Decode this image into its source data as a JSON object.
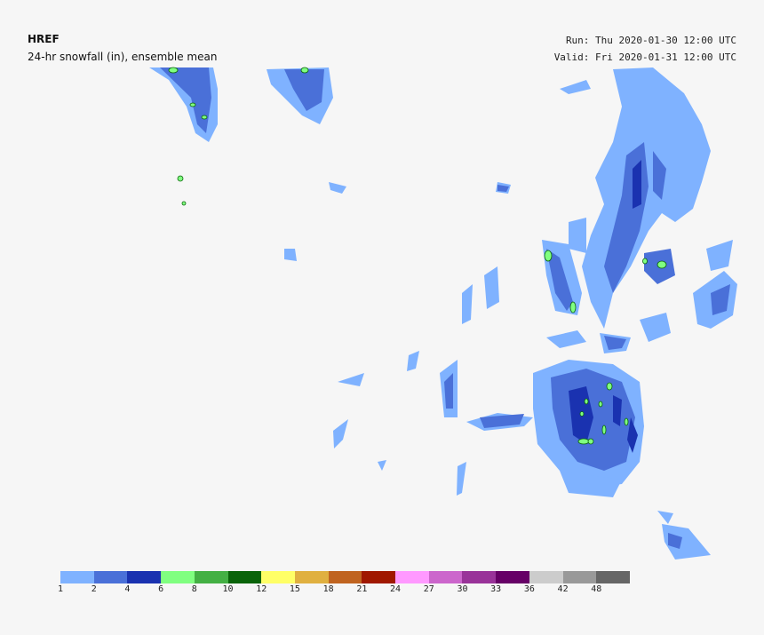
{
  "header": {
    "model": "HREF",
    "product": "24-hr snowfall (in), ensemble mean",
    "run": "Run: Thu 2020-01-30 12:00 UTC",
    "valid": "Valid: Fri 2020-01-31 12:00 UTC"
  },
  "colorbar": {
    "colors": [
      "#7fb2ff",
      "#4a70d8",
      "#1a32b0",
      "#80ff80",
      "#44b044",
      "#0a640a",
      "#ffff66",
      "#e0b040",
      "#c06420",
      "#a01800",
      "#ff99ff",
      "#cc66cc",
      "#993399",
      "#660066",
      "#cccccc",
      "#999999",
      "#666666"
    ],
    "labels": [
      "1",
      "2",
      "4",
      "6",
      "8",
      "10",
      "12",
      "15",
      "18",
      "21",
      "24",
      "27",
      "30",
      "33",
      "36",
      "42",
      "48"
    ]
  }
}
